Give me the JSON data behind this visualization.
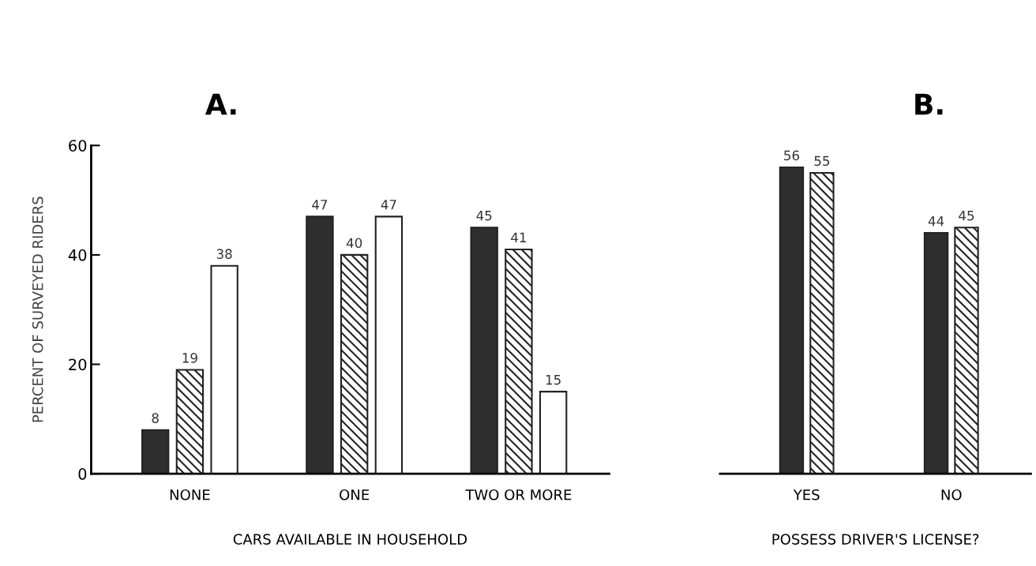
{
  "chart_data": [
    {
      "type": "bar",
      "title": "A.",
      "xlabel": "CARS AVAILABLE IN HOUSEHOLD",
      "ylabel": "PERCENT OF SURVEYED RIDERS",
      "categories": [
        "NONE",
        "ONE",
        "TWO OR MORE"
      ],
      "series": [
        {
          "color": "#2e2e2e",
          "values": [
            8,
            47,
            45
          ]
        },
        {
          "color": "#222222",
          "values": [
            19,
            40,
            41
          ]
        },
        {
          "color": "#ffffff",
          "values": [
            38,
            47,
            15
          ]
        }
      ],
      "ylim": [
        0,
        60
      ],
      "yticks": [
        0,
        20,
        40,
        60
      ],
      "data_labels": true,
      "grid": false,
      "legend": false
    },
    {
      "type": "bar",
      "title": "B.",
      "xlabel": "POSSESS DRIVER'S LICENSE?",
      "categories": [
        "YES",
        "NO"
      ],
      "series": [
        {
          "color": "#2e2e2e",
          "values": [
            56,
            44
          ]
        },
        {
          "color": "#222222",
          "values": [
            55,
            45
          ]
        }
      ],
      "ylim": [
        0,
        60
      ],
      "tick_labels": "x",
      "data_labels": true,
      "grid": false,
      "legend": false
    }
  ]
}
